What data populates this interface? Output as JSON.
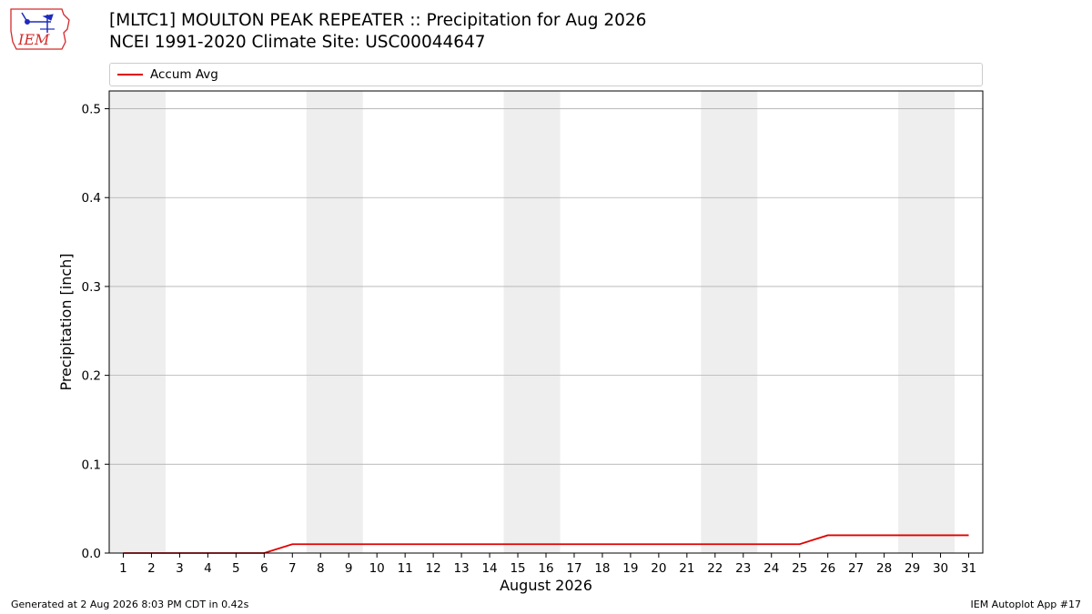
{
  "header": {
    "title_line1": "[MLTC1] MOULTON PEAK REPEATER :: Precipitation for Aug 2026",
    "title_line2": "NCEI 1991-2020 Climate Site: USC00044647"
  },
  "logo": {
    "text": "IEM"
  },
  "footer": {
    "left": "Generated at 2 Aug 2026 8:03 PM CDT in 0.42s",
    "right": "IEM Autoplot App #17"
  },
  "colors": {
    "accum_line": "#e00000",
    "weekend_shade": "#eeeeee",
    "grid": "#b0b0b0",
    "logo_red": "#d42a2a",
    "logo_blue": "#1f2bbd"
  },
  "chart_data": {
    "type": "line",
    "title": "[MLTC1] MOULTON PEAK REPEATER :: Precipitation for Aug 2026",
    "subtitle": "NCEI 1991-2020 Climate Site: USC00044647",
    "xlabel": "August 2026",
    "ylabel": "Precipitation [inch]",
    "x": [
      1,
      2,
      3,
      4,
      5,
      6,
      7,
      8,
      9,
      10,
      11,
      12,
      13,
      14,
      15,
      16,
      17,
      18,
      19,
      20,
      21,
      22,
      23,
      24,
      25,
      26,
      27,
      28,
      29,
      30,
      31
    ],
    "x_tick_labels": [
      "1",
      "2",
      "3",
      "4",
      "5",
      "6",
      "7",
      "8",
      "9",
      "10",
      "11",
      "12",
      "13",
      "14",
      "15",
      "16",
      "17",
      "18",
      "19",
      "20",
      "21",
      "22",
      "23",
      "24",
      "25",
      "26",
      "27",
      "28",
      "29",
      "30",
      "31"
    ],
    "xlim": [
      0.5,
      31.5
    ],
    "ylim": [
      0,
      0.52
    ],
    "y_ticks": [
      0.0,
      0.1,
      0.2,
      0.3,
      0.4,
      0.5
    ],
    "y_tick_labels": [
      "0.0",
      "0.1",
      "0.2",
      "0.3",
      "0.4",
      "0.5"
    ],
    "grid": "horizontal",
    "legend_placement": "top",
    "weekend_bands": [
      [
        1,
        2
      ],
      [
        8,
        9
      ],
      [
        15,
        16
      ],
      [
        22,
        23
      ],
      [
        29,
        30
      ]
    ],
    "series": [
      {
        "name": "Accum Avg",
        "values": [
          0,
          0,
          0,
          0,
          0,
          0,
          0.01,
          0.01,
          0.01,
          0.01,
          0.01,
          0.01,
          0.01,
          0.01,
          0.01,
          0.01,
          0.01,
          0.01,
          0.01,
          0.01,
          0.01,
          0.01,
          0.01,
          0.01,
          0.01,
          0.02,
          0.02,
          0.02,
          0.02,
          0.02,
          0.02
        ]
      }
    ]
  }
}
